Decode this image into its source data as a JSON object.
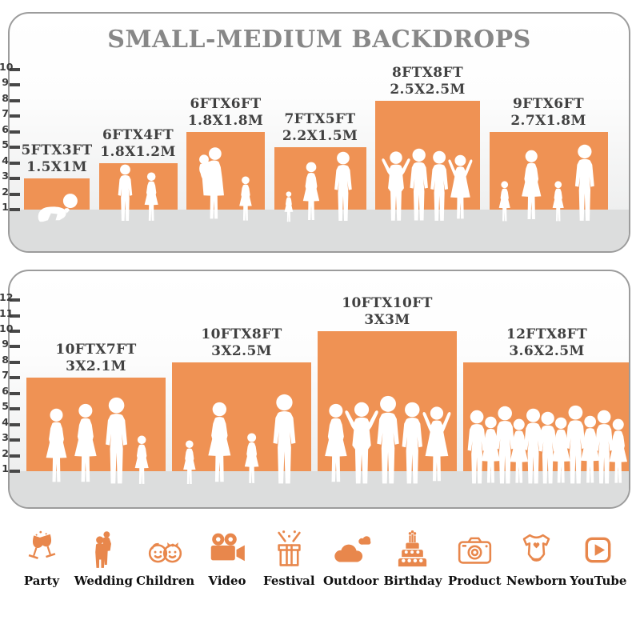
{
  "title": "SMALL-MEDIUM BACKDROPS",
  "colors": {
    "backdrop_orange": "#EF9254",
    "icon_orange": "#E8874C",
    "floor_gray": "#dcdddd",
    "title_gray": "#878787",
    "label_gray": "#414141"
  },
  "panels": [
    {
      "name": "small-medium-top",
      "ruler_ticks": [
        1,
        2,
        3,
        4,
        5,
        6,
        7,
        8,
        9,
        10
      ],
      "backdrops": [
        {
          "size_ft": "5FTX3FT",
          "size_m": "1.5X1M",
          "w_ft": 5,
          "h_ft": 3,
          "people": [
            [
              "baby",
              0.42
            ]
          ]
        },
        {
          "size_ft": "6FTX4FT",
          "size_m": "1.8X1.2M",
          "w_ft": 6,
          "h_ft": 4,
          "people": [
            [
              "boy",
              0.8
            ],
            [
              "girl",
              0.7
            ]
          ]
        },
        {
          "size_ft": "6FTX6FT",
          "size_m": "1.8X1.8M",
          "w_ft": 6,
          "h_ft": 6,
          "people": [
            [
              "woman-with-baby",
              1.04
            ],
            [
              "girl",
              0.64
            ]
          ]
        },
        {
          "size_ft": "7FTX5FT",
          "size_m": "2.2X1.5M",
          "w_ft": 7,
          "h_ft": 5,
          "people": [
            [
              "girl",
              0.44
            ],
            [
              "woman",
              0.84
            ],
            [
              "man",
              0.98
            ]
          ]
        },
        {
          "size_ft": "8FTX8FT",
          "size_m": "2.5X2.5M",
          "w_ft": 8,
          "h_ft": 8,
          "people": [
            [
              "man-arms-up",
              1.0
            ],
            [
              "man",
              1.02
            ],
            [
              "man",
              0.99
            ],
            [
              "woman-arms-up",
              0.97
            ]
          ]
        },
        {
          "size_ft": "9FTX6FT",
          "size_m": "2.7X1.8M",
          "w_ft": 9,
          "h_ft": 6,
          "people": [
            [
              "girl",
              0.58
            ],
            [
              "woman",
              1.0
            ],
            [
              "girl",
              0.58
            ],
            [
              "man",
              1.08
            ]
          ]
        }
      ]
    },
    {
      "name": "small-medium-bottom",
      "ruler_ticks": [
        1,
        2,
        3,
        4,
        5,
        6,
        7,
        8,
        9,
        10,
        11,
        12
      ],
      "backdrops": [
        {
          "size_ft": "10FTX7FT",
          "size_m": "3X2.1M",
          "w_ft": 10,
          "h_ft": 7,
          "people": [
            [
              "woman",
              0.94
            ],
            [
              "woman",
              1.0
            ],
            [
              "man",
              1.08
            ],
            [
              "girl",
              0.62
            ]
          ]
        },
        {
          "size_ft": "10FTX8FT",
          "size_m": "3X2.5M",
          "w_ft": 10,
          "h_ft": 8,
          "people": [
            [
              "girl",
              0.56
            ],
            [
              "woman",
              1.02
            ],
            [
              "girl",
              0.64
            ],
            [
              "man",
              1.12
            ]
          ]
        },
        {
          "size_ft": "10FTX10FT",
          "size_m": "3X3M",
          "w_ft": 10,
          "h_ft": 10,
          "people": [
            [
              "woman",
              1.0
            ],
            [
              "man-arms-up",
              1.04
            ],
            [
              "man",
              1.1
            ],
            [
              "man",
              1.02
            ],
            [
              "woman-arms-up",
              1.0
            ]
          ]
        },
        {
          "size_ft": "12FTX8FT",
          "size_m": "3.6X2.5M",
          "w_ft": 12,
          "h_ft": 8,
          "people": [
            [
              "man",
              0.92
            ],
            [
              "woman",
              0.85
            ],
            [
              "man",
              0.97
            ],
            [
              "woman",
              0.82
            ],
            [
              "man",
              0.94
            ],
            [
              "man",
              0.9
            ],
            [
              "woman",
              0.84
            ],
            [
              "man",
              0.98
            ],
            [
              "woman",
              0.86
            ],
            [
              "man",
              0.92
            ],
            [
              "woman",
              0.82
            ]
          ]
        }
      ]
    }
  ],
  "categories": [
    {
      "label": "Party",
      "icon": "party-icon"
    },
    {
      "label": "Wedding",
      "icon": "wedding-icon"
    },
    {
      "label": "Children",
      "icon": "children-icon"
    },
    {
      "label": "Video",
      "icon": "video-icon"
    },
    {
      "label": "Festival",
      "icon": "festival-icon"
    },
    {
      "label": "Outdoor",
      "icon": "outdoor-icon"
    },
    {
      "label": "Birthday",
      "icon": "birthday-icon"
    },
    {
      "label": "Product",
      "icon": "product-icon"
    },
    {
      "label": "Newborn",
      "icon": "newborn-icon"
    },
    {
      "label": "YouTube",
      "icon": "youtube-icon"
    }
  ]
}
